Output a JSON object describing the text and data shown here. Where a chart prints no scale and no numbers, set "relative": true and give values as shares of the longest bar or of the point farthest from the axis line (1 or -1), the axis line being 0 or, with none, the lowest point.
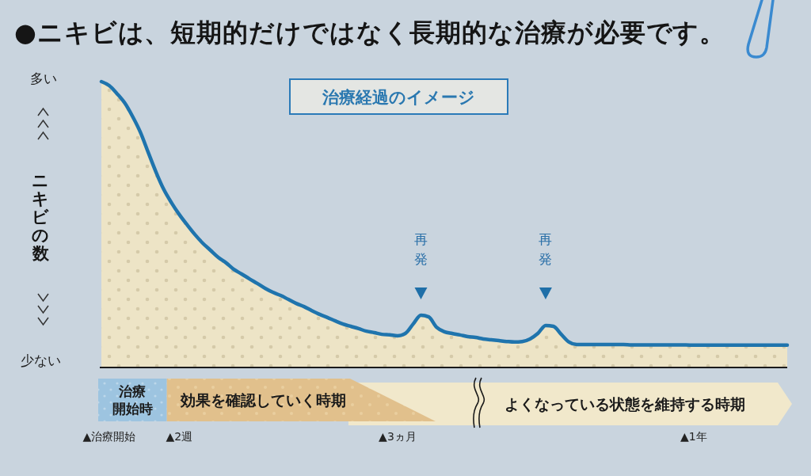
{
  "chart_data": {
    "type": "area",
    "title": "●ニキビは、短期的だけではなく長期的な治療が必要です。",
    "subtitle": "治療経過のイメージ",
    "ylabel": "ニキビの数",
    "relative": true,
    "color": "#1f74ad",
    "categories": [
      null,
      "▲治療開始",
      null,
      null,
      null,
      null,
      null,
      null,
      null,
      null,
      "▲2週",
      null,
      null,
      null,
      null,
      null,
      null,
      null,
      null,
      null,
      null,
      null,
      null,
      null,
      null,
      null,
      null,
      null,
      null,
      null,
      null,
      null,
      null,
      null,
      null,
      null,
      null,
      null,
      "▲3ヵ月",
      null,
      null,
      null,
      null,
      null,
      null,
      null,
      null,
      null,
      null,
      null,
      null,
      null,
      null,
      null,
      null,
      null,
      null,
      null,
      null,
      null,
      null,
      null,
      null,
      null,
      null,
      null,
      null,
      null,
      null,
      null,
      null,
      null,
      null,
      null,
      null,
      null,
      "▲1年",
      null,
      null,
      null,
      null,
      null,
      null,
      null,
      null,
      null,
      null,
      null,
      null
    ],
    "values": [
      1,
      0.986,
      0.958,
      0.925,
      0.878,
      0.823,
      0.753,
      0.684,
      0.623,
      0.576,
      0.535,
      0.499,
      0.465,
      0.435,
      0.41,
      0.385,
      0.366,
      0.343,
      0.327,
      0.31,
      0.294,
      0.277,
      0.263,
      0.252,
      0.238,
      0.224,
      0.213,
      0.199,
      0.186,
      0.175,
      0.163,
      0.152,
      0.144,
      0.136,
      0.127,
      0.122,
      0.116,
      0.114,
      0.111,
      0.119,
      0.152,
      0.183,
      0.177,
      0.141,
      0.125,
      0.119,
      0.114,
      0.108,
      0.105,
      0.1,
      0.097,
      0.094,
      0.091,
      0.089,
      0.091,
      0.1,
      0.119,
      0.147,
      0.144,
      0.116,
      0.089,
      0.08,
      0.08,
      0.08,
      0.08,
      0.08,
      0.08,
      0.08,
      0.079,
      0.079,
      0.079,
      0.079,
      0.079,
      0.079,
      0.079,
      0.079,
      0.078,
      0.078,
      0.078,
      0.078,
      0.078,
      0.078,
      0.078,
      0.078,
      0.078,
      0.078,
      0.078,
      0.078,
      0.078
    ],
    "annotations": [
      "多い",
      "少ない",
      "治療開始時",
      "効果を確認していく時期",
      "よくなっている状態を維持する時期",
      "再発",
      "再発"
    ]
  }
}
